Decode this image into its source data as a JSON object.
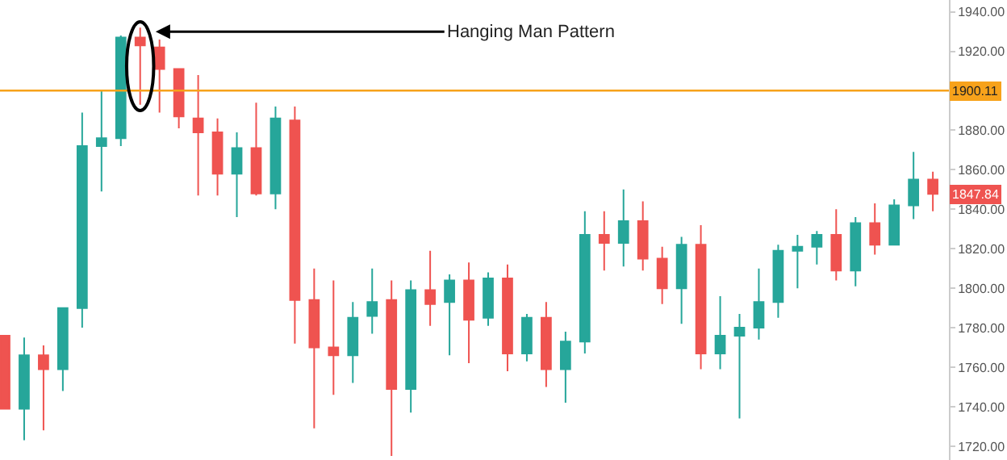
{
  "chart_data": {
    "type": "candlestick",
    "categories": [
      null,
      null,
      null,
      null,
      null,
      null,
      null,
      null,
      null,
      null,
      null,
      null,
      null,
      null,
      null,
      null,
      null,
      null,
      null,
      null,
      null,
      null,
      null,
      null,
      null,
      null,
      null,
      null,
      null,
      null,
      null,
      null,
      null,
      null,
      null,
      null,
      null,
      null,
      null,
      null,
      null,
      null,
      null,
      null,
      null,
      null,
      null,
      null,
      null
    ],
    "ohlc": [
      [
        1776,
        1776,
        1739,
        1739
      ],
      [
        1739,
        1775,
        1723,
        1766
      ],
      [
        1766,
        1771,
        1728,
        1759
      ],
      [
        1759,
        1790,
        1748,
        1790
      ],
      [
        1790,
        1889,
        1780,
        1872
      ],
      [
        1872,
        1900,
        1849,
        1876
      ],
      [
        1876,
        1928,
        1872,
        1927
      ],
      [
        1927,
        1932,
        1893,
        1923
      ],
      [
        1922,
        1926,
        1889,
        1911
      ],
      [
        1911,
        1911,
        1881,
        1887
      ],
      [
        1886,
        1908,
        1847,
        1879
      ],
      [
        1879,
        1886,
        1847,
        1858
      ],
      [
        1858,
        1879,
        1836,
        1871
      ],
      [
        1871,
        1894,
        1847,
        1848
      ],
      [
        1848,
        1892,
        1840,
        1886
      ],
      [
        1885,
        1892,
        1772,
        1794
      ],
      [
        1794,
        1810,
        1729,
        1770
      ],
      [
        1770,
        1804,
        1746,
        1766
      ],
      [
        1766,
        1793,
        1752,
        1785
      ],
      [
        1786,
        1810,
        1777,
        1793
      ],
      [
        1794,
        1804,
        1715,
        1749
      ],
      [
        1749,
        1804,
        1737,
        1799
      ],
      [
        1799,
        1819,
        1781,
        1792
      ],
      [
        1793,
        1807,
        1766,
        1804
      ],
      [
        1804,
        1813,
        1762,
        1784
      ],
      [
        1785,
        1808,
        1781,
        1805
      ],
      [
        1805,
        1812,
        1758,
        1767
      ],
      [
        1767,
        1787,
        1763,
        1785
      ],
      [
        1785,
        1793,
        1750,
        1759
      ],
      [
        1759,
        1778,
        1742,
        1773
      ],
      [
        1773,
        1839,
        1767,
        1827
      ],
      [
        1827,
        1839,
        1809,
        1823
      ],
      [
        1823,
        1850,
        1811,
        1834
      ],
      [
        1834,
        1844,
        1809,
        1815
      ],
      [
        1815,
        1821,
        1792,
        1800
      ],
      [
        1800,
        1826,
        1782,
        1822
      ],
      [
        1822,
        1832,
        1759,
        1767
      ],
      [
        1767,
        1796,
        1759,
        1776
      ],
      [
        1776,
        1787,
        1734,
        1780
      ],
      [
        1780,
        1810,
        1774,
        1793
      ],
      [
        1793,
        1822,
        1785,
        1819
      ],
      [
        1819,
        1827,
        1800,
        1821
      ],
      [
        1821,
        1829,
        1812,
        1827
      ],
      [
        1827,
        1840,
        1804,
        1809
      ],
      [
        1809,
        1836,
        1801,
        1833
      ],
      [
        1833,
        1843,
        1817,
        1822
      ],
      [
        1822,
        1845,
        1822,
        1842
      ],
      [
        1842,
        1869,
        1835,
        1855
      ],
      [
        1855,
        1859,
        1839,
        1847.84
      ]
    ],
    "colors": [
      "#ef5350",
      "#26a69a",
      "#ef5350",
      "#26a69a",
      "#26a69a",
      "#26a69a",
      "#26a69a",
      "#ef5350",
      "#ef5350",
      "#ef5350",
      "#ef5350",
      "#ef5350",
      "#26a69a",
      "#ef5350",
      "#26a69a",
      "#ef5350",
      "#ef5350",
      "#ef5350",
      "#26a69a",
      "#26a69a",
      "#ef5350",
      "#26a69a",
      "#ef5350",
      "#26a69a",
      "#ef5350",
      "#26a69a",
      "#ef5350",
      "#26a69a",
      "#ef5350",
      "#26a69a",
      "#26a69a",
      "#ef5350",
      "#26a69a",
      "#ef5350",
      "#ef5350",
      "#26a69a",
      "#ef5350",
      "#26a69a",
      "#26a69a",
      "#26a69a",
      "#26a69a",
      "#26a69a",
      "#26a69a",
      "#ef5350",
      "#26a69a",
      "#ef5350",
      "#26a69a",
      "#26a69a",
      "#ef5350"
    ],
    "ylim": [
      1713,
      1946
    ],
    "yticks": [
      {
        "value": 1720,
        "label": "1720.00"
      },
      {
        "value": 1740,
        "label": "1740.00"
      },
      {
        "value": 1760,
        "label": "1760.00"
      },
      {
        "value": 1780,
        "label": "1780.00"
      },
      {
        "value": 1800,
        "label": "1800.00"
      },
      {
        "value": 1820,
        "label": "1820.00"
      },
      {
        "value": 1840,
        "label": "1840.00"
      },
      {
        "value": 1860,
        "label": "1860.00"
      },
      {
        "value": 1880,
        "label": "1880.00"
      },
      {
        "value": 1900,
        "label": null
      },
      {
        "value": 1920,
        "label": "1920.00"
      },
      {
        "value": 1940,
        "label": "1940.00"
      }
    ],
    "ref_lines": [
      {
        "axis": "y",
        "value": 1900.11,
        "label": "1900.11",
        "color": "#f7a21b"
      }
    ],
    "annotations": [
      "Hanging Man Pattern",
      {
        "text": "1847.84",
        "y": 1847.84
      }
    ]
  }
}
